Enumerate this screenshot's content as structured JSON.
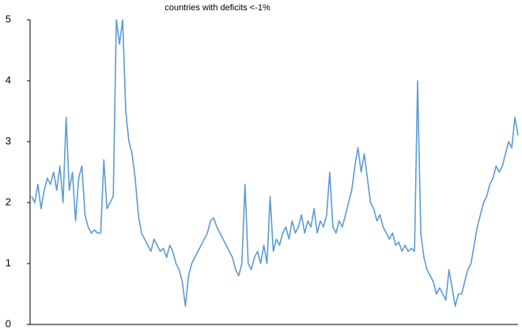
{
  "chart_data": {
    "type": "line",
    "title": "countries with deficits <-1%",
    "series": [
      {
        "color": "#5b9bd5",
        "values": [
          2.1,
          2.0,
          2.3,
          1.9,
          2.2,
          2.4,
          2.3,
          2.5,
          2.2,
          2.6,
          2.0,
          3.4,
          2.2,
          2.5,
          1.7,
          2.4,
          2.6,
          1.8,
          1.6,
          1.5,
          1.55,
          1.5,
          1.5,
          2.7,
          1.9,
          2.0,
          2.1,
          5.0,
          4.6,
          5.0,
          3.5,
          3.0,
          2.8,
          2.4,
          1.8,
          1.5,
          1.4,
          1.3,
          1.2,
          1.4,
          1.3,
          1.2,
          1.25,
          1.1,
          1.3,
          1.2,
          1.0,
          0.9,
          0.7,
          0.3,
          0.8,
          1.0,
          1.1,
          1.2,
          1.3,
          1.4,
          1.5,
          1.7,
          1.75,
          1.6,
          1.5,
          1.4,
          1.3,
          1.2,
          1.1,
          0.9,
          0.8,
          1.0,
          2.3,
          1.0,
          0.9,
          1.1,
          1.2,
          1.0,
          1.3,
          1.0,
          2.1,
          1.2,
          1.4,
          1.3,
          1.5,
          1.6,
          1.4,
          1.7,
          1.5,
          1.6,
          1.8,
          1.5,
          1.7,
          1.6,
          1.9,
          1.5,
          1.7,
          1.6,
          1.8,
          2.5,
          1.6,
          1.5,
          1.7,
          1.6,
          1.8,
          2.0,
          2.2,
          2.6,
          2.9,
          2.5,
          2.8,
          2.4,
          2.0,
          1.9,
          1.7,
          1.8,
          1.6,
          1.5,
          1.4,
          1.5,
          1.3,
          1.35,
          1.2,
          1.3,
          1.2,
          1.25,
          1.2,
          4.0,
          1.5,
          1.1,
          0.9,
          0.8,
          0.7,
          0.5,
          0.6,
          0.5,
          0.4,
          0.9,
          0.6,
          0.3,
          0.5,
          0.5,
          0.7,
          0.9,
          1.0,
          1.3,
          1.6,
          1.8,
          2.0,
          2.1,
          2.3,
          2.4,
          2.6,
          2.5,
          2.6,
          2.8,
          3.0,
          2.9,
          3.4,
          3.1
        ]
      }
    ],
    "ylim": [
      0,
      5
    ],
    "yticks": [
      0,
      1,
      2,
      3,
      4,
      5
    ],
    "grid": false
  }
}
